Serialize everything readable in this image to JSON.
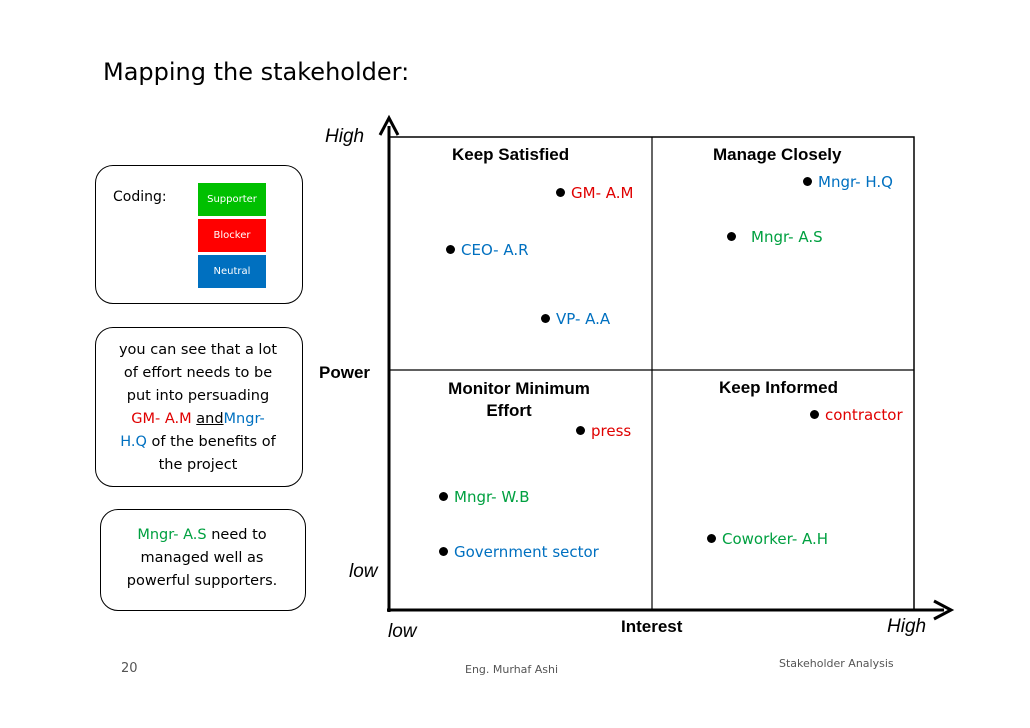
{
  "slide": {
    "title": "Mapping the stakeholder:",
    "page_number": "20",
    "author": "Eng. Murhaf Ashi",
    "footer_title": "Stakeholder Analysis"
  },
  "legend": {
    "label": "Coding:",
    "items": [
      {
        "label": "Supporter",
        "color": "#00c000"
      },
      {
        "label": "Blocker",
        "color": "#ff0000"
      },
      {
        "label": "Neutral",
        "color": "#0070c0"
      }
    ]
  },
  "note1": {
    "line1": "you can see that a lot",
    "line2": "of effort needs to be",
    "line3": "put into persuading",
    "gm": "GM- A.M",
    "and": "and",
    "mngr1": "Mngr-",
    "mngr2": "H.Q",
    "tail": "of the benefits of",
    "line6": "the project"
  },
  "note2": {
    "mngr": "Mngr- A.S",
    "line1_tail": "need to",
    "line2": "managed well as",
    "line3": "powerful supporters."
  },
  "axes": {
    "y_label": "Power",
    "y_high": "High",
    "y_low": "low",
    "x_label": "Interest",
    "x_high": "High",
    "x_low": "low"
  },
  "quadrants": {
    "top_left": "Keep Satisfied",
    "top_right": "Manage Closely",
    "bottom_left_line1": "Monitor Minimum",
    "bottom_left_line2": "Effort",
    "bottom_right": "Keep Informed"
  },
  "stakeholders": [
    {
      "name": "GM- A.M",
      "type": "Blocker",
      "color": "#e00000"
    },
    {
      "name": "Mngr-  H.Q",
      "type": "Neutral",
      "color": "#0070c0"
    },
    {
      "name": "Mngr- A.S",
      "type": "Supporter",
      "color": "#00a040"
    },
    {
      "name": "CEO- A.R",
      "type": "Neutral",
      "color": "#0070c0"
    },
    {
      "name": "VP- A.A",
      "type": "Neutral",
      "color": "#0070c0"
    },
    {
      "name": "contractor",
      "type": "Blocker",
      "color": "#e00000"
    },
    {
      "name": "press",
      "type": "Blocker",
      "color": "#e00000"
    },
    {
      "name": "Mngr-  W.B",
      "type": "Supporter",
      "color": "#00a040"
    },
    {
      "name": "Coworker-  A.H",
      "type": "Supporter",
      "color": "#00a040"
    },
    {
      "name": "Government sector",
      "type": "Neutral",
      "color": "#0070c0"
    }
  ]
}
